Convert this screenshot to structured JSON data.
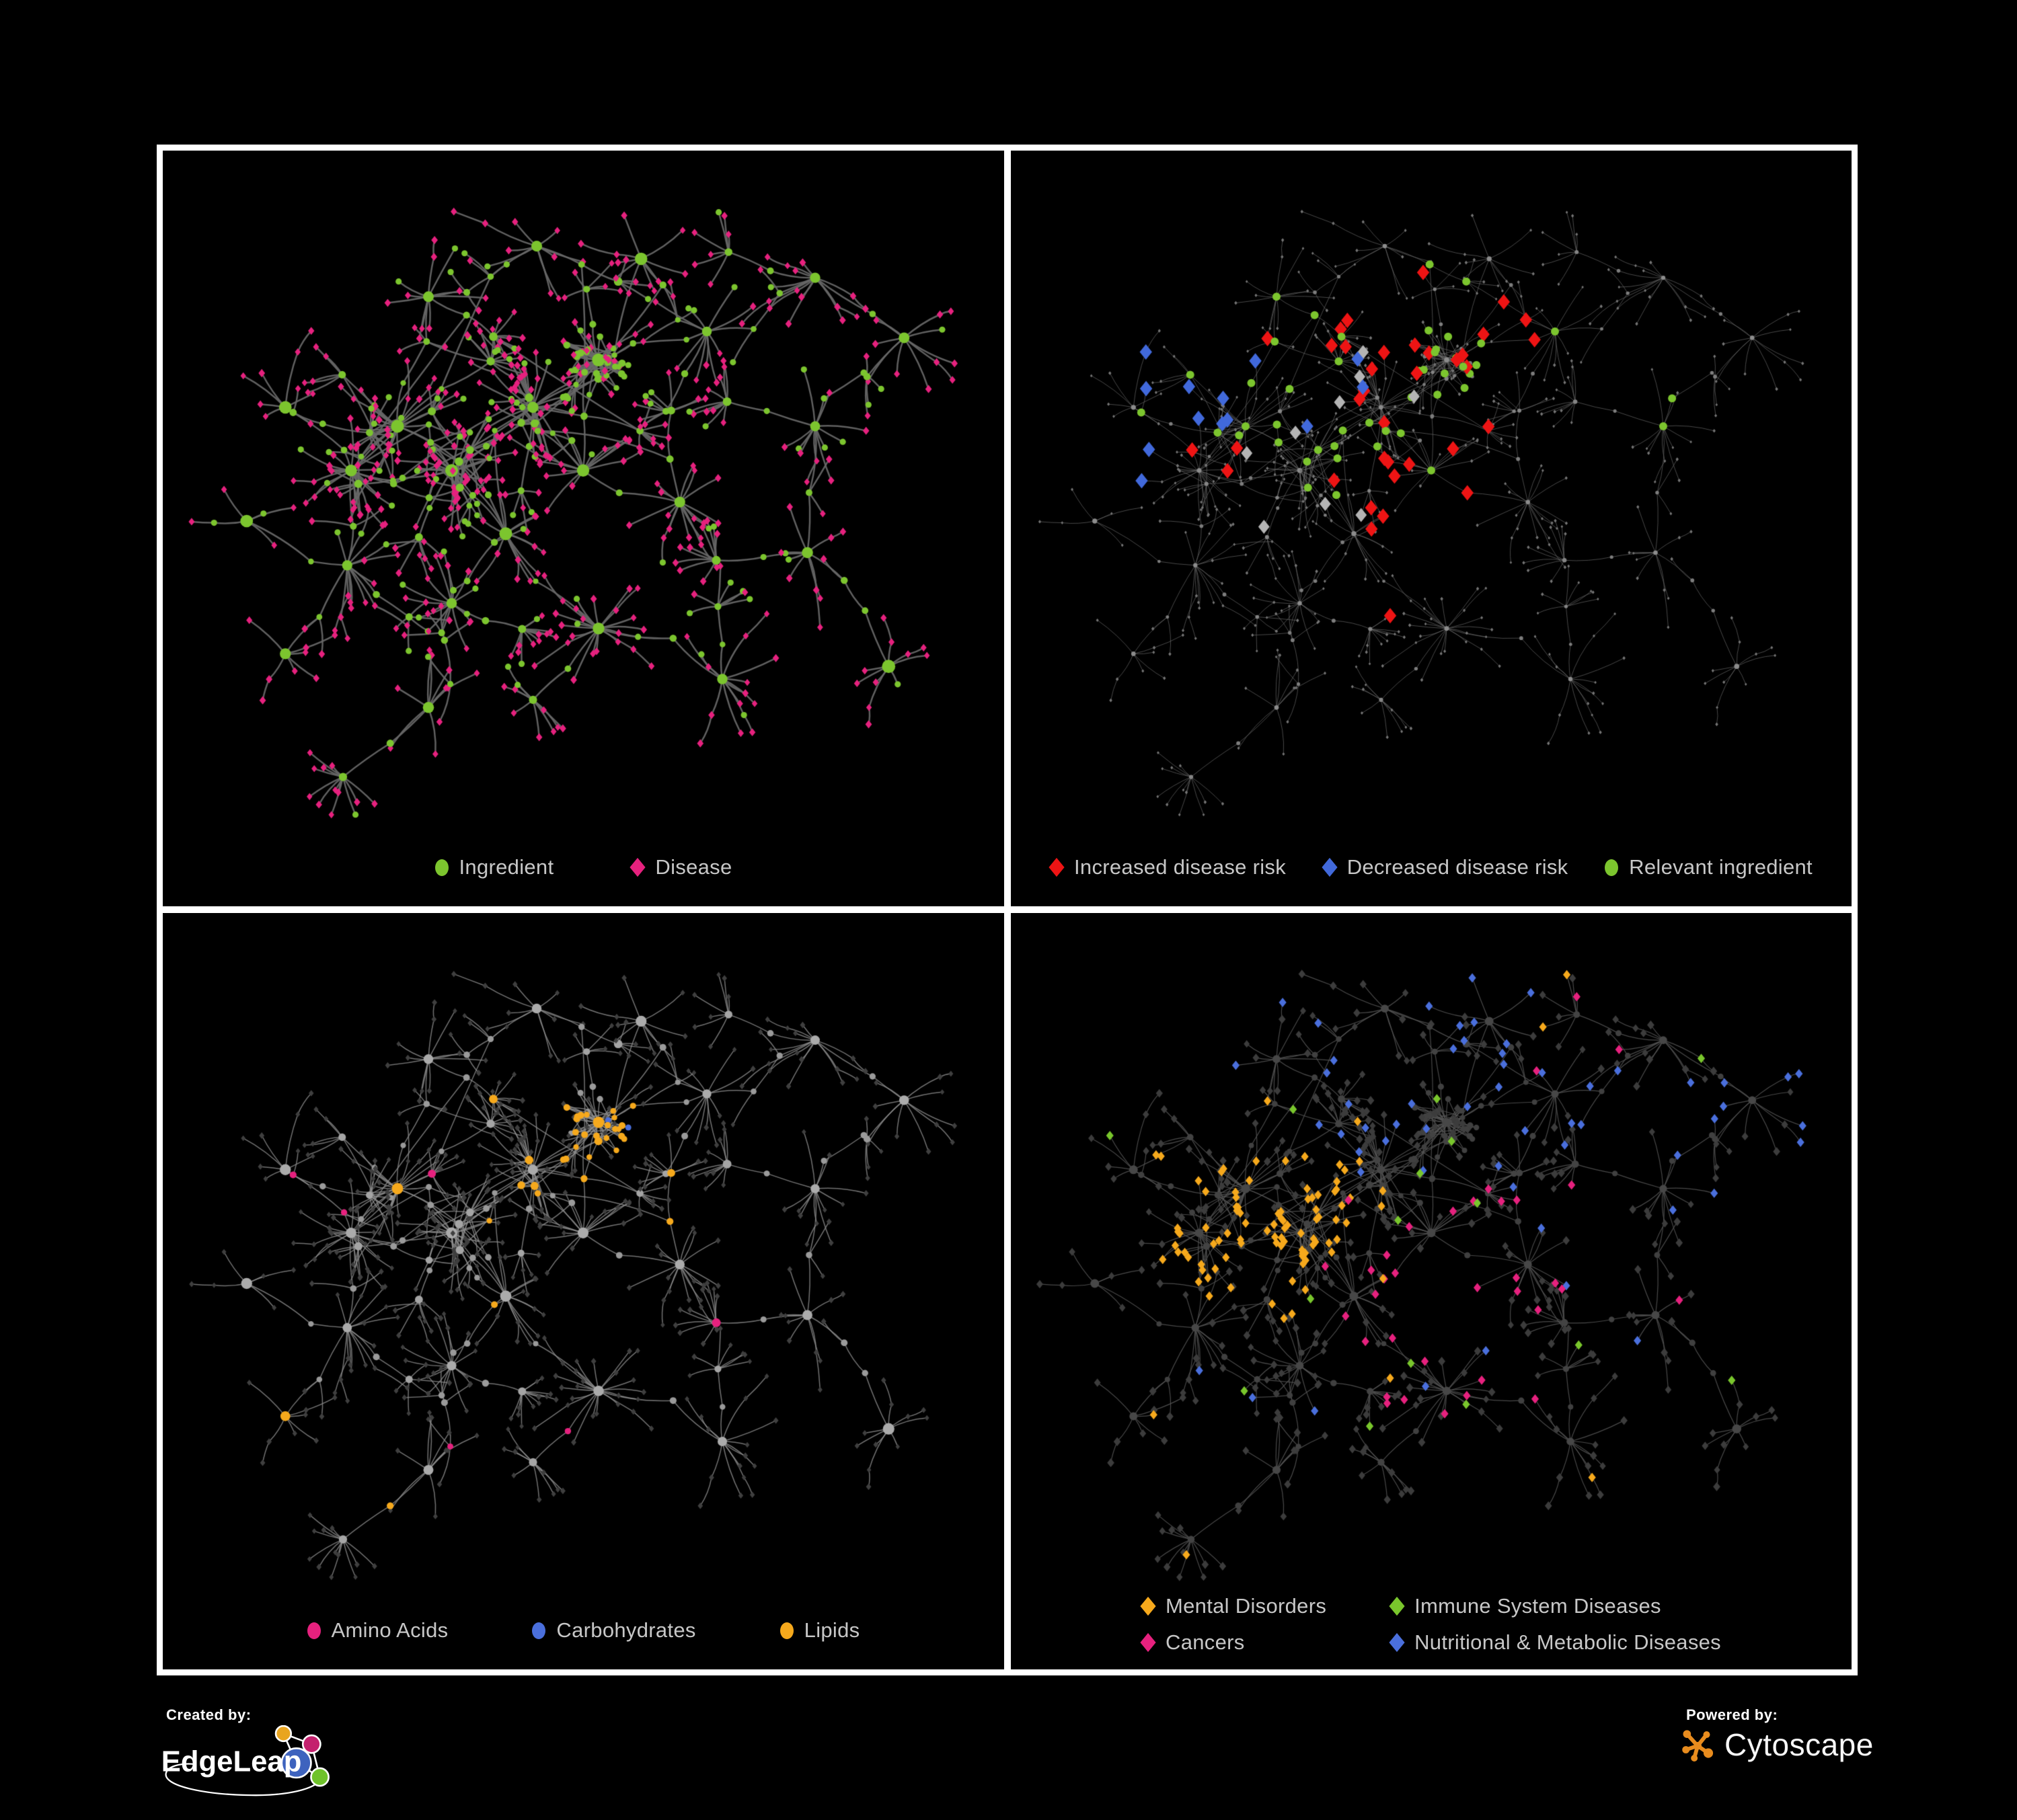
{
  "legends": {
    "panel1": {
      "items": [
        {
          "label": "Ingredient",
          "shape": "circle",
          "color": "#7CC52E"
        },
        {
          "label": "Disease",
          "shape": "diamond",
          "color": "#E6217E"
        }
      ]
    },
    "panel2": {
      "items": [
        {
          "label": "Increased disease risk",
          "shape": "diamond",
          "color": "#EE1414"
        },
        {
          "label": "Decreased disease risk",
          "shape": "diamond",
          "color": "#4169DB"
        },
        {
          "label": "Relevant ingredient",
          "shape": "circle",
          "color": "#7CC52E"
        }
      ]
    },
    "panel3": {
      "items": [
        {
          "label": "Amino Acids",
          "shape": "circle",
          "color": "#E6217E"
        },
        {
          "label": "Carbohydrates",
          "shape": "circle",
          "color": "#4A6FDC"
        },
        {
          "label": "Lipids",
          "shape": "circle",
          "color": "#F6A91C"
        }
      ]
    },
    "panel4": {
      "rows": [
        [
          {
            "label": "Mental Disorders",
            "shape": "diamond",
            "color": "#F6A91C"
          },
          {
            "label": "Immune System Diseases",
            "shape": "diamond",
            "color": "#79C62C"
          }
        ],
        [
          {
            "label": "Cancers",
            "shape": "diamond",
            "color": "#E6217E"
          },
          {
            "label": "Nutritional & Metabolic Diseases",
            "shape": "diamond",
            "color": "#4A6FDC"
          }
        ]
      ]
    }
  },
  "footer": {
    "created_by": "Created by:",
    "brand": "EdgeLeap",
    "powered_by": "Powered by:",
    "engine": "Cytoscape",
    "edgeleap_node_colors": [
      "#E9A51F",
      "#C4216E",
      "#3E63BE",
      "#6FC22B"
    ],
    "cytoscape_orange": "#E88C1E"
  },
  "network": {
    "seed": 20,
    "clusters": [
      [
        0.26,
        0.4,
        16,
        24,
        3,
        0
      ],
      [
        0.33,
        0.47,
        14,
        20,
        3,
        0
      ],
      [
        0.2,
        0.47,
        12,
        18,
        2,
        0
      ],
      [
        0.435,
        0.37,
        12,
        18,
        3,
        0
      ],
      [
        0.52,
        0.295,
        8,
        12,
        2,
        1
      ],
      [
        0.5,
        0.47,
        10,
        16,
        2,
        0
      ],
      [
        0.4,
        0.57,
        10,
        14,
        2,
        0
      ],
      [
        0.625,
        0.52,
        12,
        18,
        1,
        0
      ],
      [
        0.52,
        0.72,
        20,
        28,
        1,
        0
      ],
      [
        0.33,
        0.68,
        10,
        16,
        1,
        0
      ],
      [
        0.195,
        0.62,
        8,
        12,
        1,
        0
      ],
      [
        0.115,
        0.37,
        7,
        11,
        1,
        0
      ],
      [
        0.3,
        0.195,
        8,
        12,
        1,
        0
      ],
      [
        0.44,
        0.115,
        7,
        10,
        1,
        0
      ],
      [
        0.66,
        0.25,
        8,
        13,
        1,
        0
      ],
      [
        0.8,
        0.165,
        8,
        12,
        1,
        0
      ],
      [
        0.915,
        0.26,
        6,
        10,
        0,
        0
      ],
      [
        0.8,
        0.4,
        9,
        14,
        1,
        0
      ],
      [
        0.79,
        0.6,
        6,
        9,
        1,
        0
      ],
      [
        0.68,
        0.8,
        8,
        12,
        1,
        0
      ],
      [
        0.3,
        0.845,
        7,
        11,
        1,
        0
      ],
      [
        0.115,
        0.76,
        6,
        9,
        0,
        0
      ],
      [
        0.895,
        0.78,
        6,
        9,
        0,
        0
      ],
      [
        0.575,
        0.135,
        5,
        8,
        0,
        0
      ],
      [
        0.065,
        0.55,
        5,
        8,
        0,
        0
      ]
    ],
    "styles": {
      "p1": {
        "rseed": 1,
        "edge": "#686868",
        "edgeW": 2.5,
        "edgeA": 0.92,
        "leafCircleP": 0.17,
        "leafCircleR": 4.6,
        "base": {
          "hub": [
            "circle",
            "#7CC52E",
            7,
            10.5
          ],
          "sub": [
            "circle",
            "#7CC52E",
            5,
            6.5
          ],
          "mid": [
            "circle",
            "#7CC52E",
            4,
            5.5
          ],
          "leaf": [
            "diamond",
            "#E6217E",
            5,
            6.2
          ]
        },
        "cats": []
      },
      "p2": {
        "rseed": 2,
        "edge": "#6a6a6a",
        "edgeW": 0.95,
        "edgeA": 0.72,
        "base": {
          "hub": [
            "circle",
            "#8c8c8c",
            3,
            4
          ],
          "sub": [
            "circle",
            "#858585",
            2.6,
            3.3
          ],
          "mid": [
            "circle",
            "#7d7d7d",
            2.3,
            3
          ],
          "leaf": [
            "diamond",
            "#757575",
            2.2,
            2.9
          ]
        },
        "cats": [
          {
            "shape": "diamond",
            "color": "#EE1414",
            "size": 11.5,
            "max": 36,
            "targets": "leafmid",
            "regions": [
              [
                0.42,
                0.37,
                0.13,
                0.7
              ],
              [
                0.57,
                0.46,
                0.09,
                0.5
              ],
              [
                0.63,
                0.42,
                0.05,
                0.5
              ],
              [
                0.71,
                0.8,
                0.045,
                0.6
              ],
              [
                0.77,
                0.86,
                0.04,
                0.6
              ],
              [
                0.47,
                0.62,
                0.07,
                0.35
              ],
              [
                0.9,
                0.42,
                0.04,
                0.3
              ]
            ]
          },
          {
            "shape": "diamond",
            "color": "#4169DB",
            "size": 11.5,
            "max": 13,
            "targets": "leafmid",
            "regions": [
              [
                0.185,
                0.36,
                0.055,
                0.85
              ],
              [
                0.815,
                0.34,
                0.025,
                0.95
              ],
              [
                0.3,
                0.33,
                0.08,
                0.15
              ]
            ]
          },
          {
            "shape": "diamond",
            "color": "#B4B4B4",
            "size": 10.5,
            "max": 9,
            "targets": "leafmid",
            "regions": [
              [
                0.36,
                0.33,
                0.05,
                0.5
              ],
              [
                0.52,
                0.38,
                0.04,
                0.4
              ],
              [
                0.47,
                0.55,
                0.05,
                0.4
              ],
              [
                0.6,
                0.68,
                0.05,
                0.45
              ],
              [
                0.3,
                0.52,
                0.05,
                0.3
              ]
            ]
          },
          {
            "shape": "circle",
            "color": "#7CC52E",
            "size": 6,
            "max": 46,
            "targets": "internal",
            "regions": [
              [
                0.38,
                0.35,
                0.14,
                0.75
              ],
              [
                0.5,
                0.42,
                0.08,
                0.6
              ],
              [
                0.46,
                0.55,
                0.035,
                0.95
              ],
              [
                0.79,
                0.35,
                0.03,
                0.85
              ],
              [
                0.13,
                0.28,
                0.06,
                0.4
              ],
              [
                0.9,
                0.77,
                0.05,
                0.35
              ],
              [
                0.63,
                0.3,
                0.08,
                0.3
              ]
            ]
          }
        ]
      },
      "p3": {
        "rseed": 3,
        "edge": "#8e8e8e",
        "edgeW": 1.5,
        "edgeA": 0.8,
        "base": {
          "hub": [
            "circle",
            "#ababab",
            6.5,
            9
          ],
          "sub": [
            "circle",
            "#a5a5a5",
            5,
            6.5
          ],
          "mid": [
            "circle",
            "#9a9a9a",
            4,
            5.2
          ],
          "leaf": [
            "diamond",
            "#3f3f3f",
            4,
            5
          ]
        },
        "cats": [
          {
            "shape": "circle",
            "color": "#F6A91C",
            "size": 0,
            "max": 68,
            "targets": "internal",
            "regions": [
              [
                0.53,
                0.32,
                0.06,
                0.95
              ],
              [
                0.44,
                0.42,
                0.06,
                0.5
              ],
              [
                0.4,
                0.52,
                0.05,
                0.35
              ],
              [
                0.52,
                0.63,
                0.04,
                0.55
              ],
              [
                0.23,
                0.12,
                0.05,
                0.4
              ],
              [
                0.9,
                0.2,
                0.05,
                0.3
              ],
              [
                0.5,
                0.5,
                0.6,
                0.05
              ]
            ]
          },
          {
            "shape": "circle",
            "color": "#4A6FDC",
            "size": 0,
            "max": 15,
            "targets": "internal",
            "regions": [
              [
                0.56,
                0.3,
                0.045,
                0.6
              ],
              [
                0.47,
                0.38,
                0.03,
                0.3
              ],
              [
                0.64,
                0.57,
                0.03,
                0.5
              ],
              [
                0.86,
                0.36,
                0.03,
                0.4
              ],
              [
                0.05,
                0.35,
                0.03,
                0.4
              ]
            ]
          },
          {
            "shape": "circle",
            "color": "#E6217E",
            "size": 0,
            "max": 30,
            "targets": "internal",
            "regions": [
              [
                0.1,
                0.46,
                0.05,
                0.5
              ],
              [
                0.14,
                0.75,
                0.05,
                0.5
              ],
              [
                0.32,
                0.8,
                0.06,
                0.4
              ],
              [
                0.5,
                0.78,
                0.06,
                0.5
              ],
              [
                0.64,
                0.66,
                0.06,
                0.45
              ],
              [
                0.77,
                0.7,
                0.05,
                0.4
              ],
              [
                0.47,
                0.06,
                0.04,
                0.5
              ],
              [
                0.25,
                0.3,
                0.06,
                0.2
              ],
              [
                0.88,
                0.8,
                0.04,
                0.3
              ]
            ]
          }
        ]
      },
      "p4": {
        "rseed": 4,
        "edge": "#565656",
        "edgeW": 1.2,
        "edgeA": 0.85,
        "base": {
          "hub": [
            "circle",
            "#474747",
            5.5,
            7
          ],
          "sub": [
            "circle",
            "#434343",
            4.5,
            5.5
          ],
          "mid": [
            "circle",
            "#404040",
            3.8,
            4.8
          ],
          "leaf": [
            "diamond",
            "#3c3c3c",
            5.5,
            6.8
          ]
        },
        "cats": [
          {
            "shape": "diamond",
            "color": "#F6A91C",
            "size": 7,
            "max": 100,
            "targets": "leaf",
            "regions": [
              [
                0.29,
                0.47,
                0.085,
                0.97
              ],
              [
                0.22,
                0.55,
                0.05,
                0.6
              ],
              [
                0.38,
                0.4,
                0.05,
                0.4
              ],
              [
                0.66,
                0.1,
                0.04,
                0.4
              ],
              [
                0.5,
                0.5,
                0.7,
                0.012
              ]
            ]
          },
          {
            "shape": "diamond",
            "color": "#E6217E",
            "size": 7,
            "max": 72,
            "targets": "leaf",
            "regions": [
              [
                0.53,
                0.57,
                0.08,
                0.75
              ],
              [
                0.62,
                0.5,
                0.05,
                0.5
              ],
              [
                0.92,
                0.49,
                0.045,
                0.85
              ],
              [
                0.75,
                0.1,
                0.05,
                0.4
              ],
              [
                0.44,
                0.68,
                0.05,
                0.4
              ],
              [
                0.5,
                0.5,
                0.7,
                0.01
              ]
            ]
          },
          {
            "shape": "diamond",
            "color": "#4A6FDC",
            "size": 7,
            "max": 88,
            "targets": "leaf",
            "regions": [
              [
                0.6,
                0.13,
                0.1,
                0.55
              ],
              [
                0.83,
                0.3,
                0.09,
                0.5
              ],
              [
                0.53,
                0.645,
                0.035,
                0.9
              ],
              [
                0.7,
                0.35,
                0.07,
                0.35
              ],
              [
                0.25,
                0.12,
                0.07,
                0.3
              ],
              [
                0.45,
                0.3,
                0.06,
                0.3
              ],
              [
                0.2,
                0.8,
                0.06,
                0.25
              ],
              [
                0.5,
                0.5,
                0.7,
                0.03
              ]
            ]
          },
          {
            "shape": "diamond",
            "color": "#79C62C",
            "size": 7,
            "max": 15,
            "targets": "leaf",
            "regions": [
              [
                0.33,
                0.2,
                0.05,
                0.3
              ],
              [
                0.52,
                0.42,
                0.03,
                0.5
              ],
              [
                0.5,
                0.5,
                0.7,
                0.035
              ]
            ]
          }
        ]
      }
    }
  }
}
